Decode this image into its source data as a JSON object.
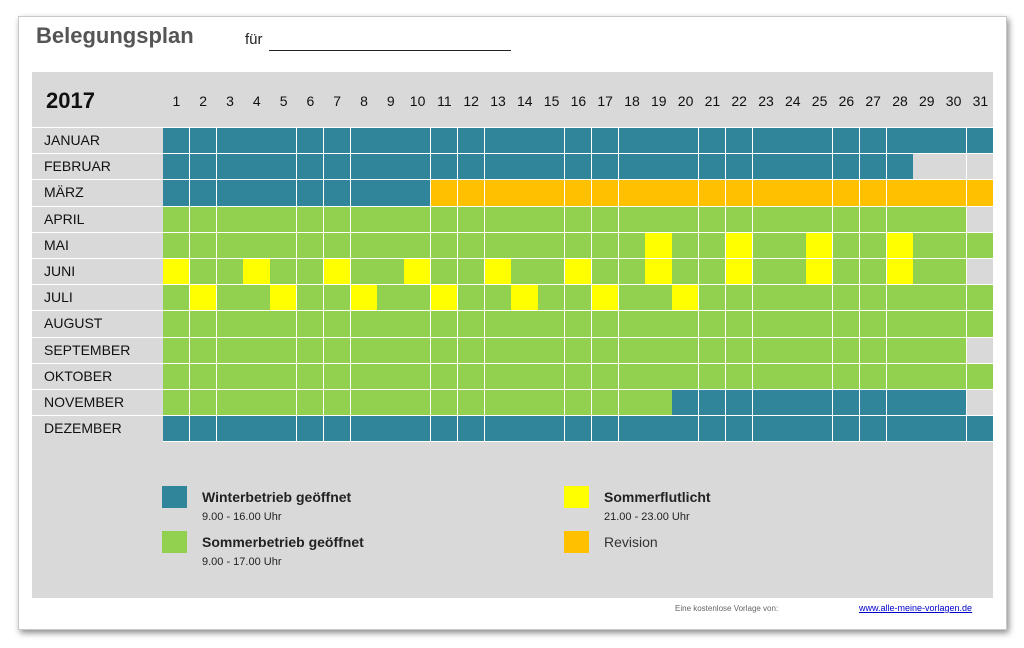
{
  "header": {
    "title": "Belegungsplan",
    "fuer_label": "für"
  },
  "plan": {
    "year": "2017",
    "days": [
      "1",
      "2",
      "3",
      "4",
      "5",
      "6",
      "7",
      "8",
      "9",
      "10",
      "11",
      "12",
      "13",
      "14",
      "15",
      "16",
      "17",
      "18",
      "19",
      "20",
      "21",
      "22",
      "23",
      "24",
      "25",
      "26",
      "27",
      "28",
      "29",
      "30",
      "31"
    ],
    "colors": {
      "W": "#31859b",
      "S": "#92d050",
      "L": "#ffff00",
      "R": "#ffc000",
      "X": "#d9d9d9"
    },
    "months": [
      {
        "name": "JANUAR",
        "cells": "WWWWWWWWWWWWWWWWWWWWWWWWWWWWWWW"
      },
      {
        "name": "FEBRUAR",
        "cells": "WWWWWWWWWWWWWWWWWWWWWWWWWWWWXXX"
      },
      {
        "name": "MÄRZ",
        "cells": "WWWWWWWWWWRRRRRRRRRRRRRRRRRRRRR"
      },
      {
        "name": "APRIL",
        "cells": "SSSSSSSSSSSSSSSSSSSSSSSSSSSSSSX"
      },
      {
        "name": "MAI",
        "cells": "SSSSSSSSSSSSSSSSSSLSSLSSLSSLSSS"
      },
      {
        "name": "JUNI",
        "cells": "LSSLSSLSSLSSLSSLSSLSSLSSLSSLSSX"
      },
      {
        "name": "JULI",
        "cells": "SLSSLSSLSSLSSLSSLSSLSSSSSSSSSSS"
      },
      {
        "name": "AUGUST",
        "cells": "SSSSSSSSSSSSSSSSSSSSSSSSSSSSSSS"
      },
      {
        "name": "SEPTEMBER",
        "cells": "SSSSSSSSSSSSSSSSSSSSSSSSSSSSSSX"
      },
      {
        "name": "OKTOBER",
        "cells": "SSSSSSSSSSSSSSSSSSSSSSSSSSSSSSS"
      },
      {
        "name": "NOVEMBER",
        "cells": "SSSSSSSSSSSSSSSSSSSWWWWWWWWWWWX"
      },
      {
        "name": "DEZEMBER",
        "cells": "WWWWWWWWWWWWWWWWWWWWWWWWWWWWWWW"
      }
    ]
  },
  "legend": {
    "winter": {
      "label": "Winterbetrieb geöffnet",
      "hours": "9.00 - 16.00 Uhr",
      "color": "#31859b"
    },
    "sommer": {
      "label": "Sommerbetrieb geöffnet",
      "hours": "9.00 - 17.00 Uhr",
      "color": "#92d050"
    },
    "flutlicht": {
      "label": "Sommerflutlicht",
      "hours": "21.00 - 23.00 Uhr",
      "color": "#ffff00"
    },
    "revision": {
      "label": "Revision",
      "color": "#ffc000"
    }
  },
  "footer": {
    "text": "Eine kostenlose Vorlage von:",
    "link": "www.alle-meine-vorlagen.de"
  }
}
